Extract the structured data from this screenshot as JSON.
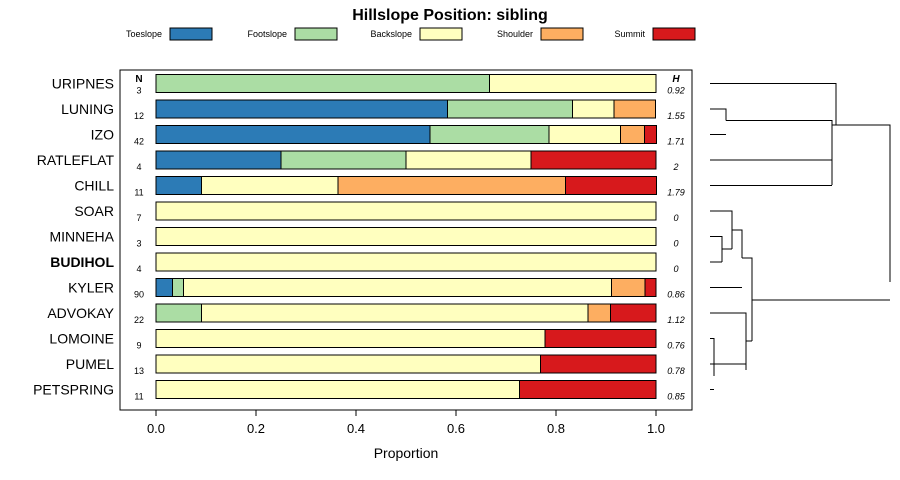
{
  "chart_data": {
    "type": "bar",
    "orientation": "horizontal-stacked",
    "title": "Hillslope Position: sibling",
    "xlabel": "Proportion",
    "ylabel": "",
    "xlim": [
      0,
      1
    ],
    "x_ticks": [
      "0.0",
      "0.2",
      "0.4",
      "0.6",
      "0.8",
      "1.0"
    ],
    "col_header_n": "N",
    "col_header_h": "H",
    "legend_position": "top",
    "series": [
      {
        "name": "Toeslope",
        "color": "#2c7bb6"
      },
      {
        "name": "Footslope",
        "color": "#abdda4"
      },
      {
        "name": "Backslope",
        "color": "#ffffbf"
      },
      {
        "name": "Shoulder",
        "color": "#fdae61"
      },
      {
        "name": "Summit",
        "color": "#d7191c"
      }
    ],
    "rows": [
      {
        "label": "URIPNES",
        "n": "3",
        "h": "0.92",
        "values": [
          0,
          0.667,
          0.333,
          0,
          0
        ],
        "bold": false
      },
      {
        "label": "LUNING",
        "n": "12",
        "h": "1.55",
        "values": [
          0.583,
          0.25,
          0.083,
          0.083,
          0
        ],
        "bold": false
      },
      {
        "label": "IZO",
        "n": "42",
        "h": "1.71",
        "values": [
          0.548,
          0.238,
          0.143,
          0.048,
          0.024
        ],
        "bold": false
      },
      {
        "label": "RATLEFLAT",
        "n": "4",
        "h": "2",
        "values": [
          0.25,
          0.25,
          0.25,
          0,
          0.25
        ],
        "bold": false
      },
      {
        "label": "CHILL",
        "n": "11",
        "h": "1.79",
        "values": [
          0.091,
          0,
          0.273,
          0.455,
          0.182
        ],
        "bold": false
      },
      {
        "label": "SOAR",
        "n": "7",
        "h": "0",
        "values": [
          0,
          0,
          1,
          0,
          0
        ],
        "bold": false
      },
      {
        "label": "MINNEHA",
        "n": "3",
        "h": "0",
        "values": [
          0,
          0,
          1,
          0,
          0
        ],
        "bold": false
      },
      {
        "label": "BUDIHOL",
        "n": "4",
        "h": "0",
        "values": [
          0,
          0,
          1,
          0,
          0
        ],
        "bold": true
      },
      {
        "label": "KYLER",
        "n": "90",
        "h": "0.86",
        "values": [
          0.033,
          0.022,
          0.856,
          0.067,
          0.022
        ],
        "bold": false
      },
      {
        "label": "ADVOKAY",
        "n": "22",
        "h": "1.12",
        "values": [
          0,
          0.091,
          0.773,
          0.045,
          0.091
        ],
        "bold": false
      },
      {
        "label": "LOMOINE",
        "n": "9",
        "h": "0.76",
        "values": [
          0,
          0,
          0.778,
          0,
          0.222
        ],
        "bold": false
      },
      {
        "label": "PUMEL",
        "n": "13",
        "h": "0.78",
        "values": [
          0,
          0,
          0.769,
          0,
          0.231
        ],
        "bold": false
      },
      {
        "label": "PETSPRING",
        "n": "11",
        "h": "0.85",
        "values": [
          0,
          0,
          0.727,
          0,
          0.273
        ],
        "bold": false
      }
    ]
  }
}
